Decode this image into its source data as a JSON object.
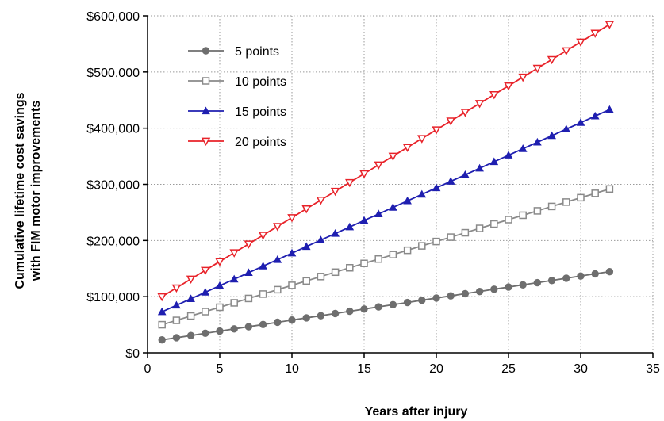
{
  "chart_data": {
    "type": "line",
    "xlabel": "Years after injury",
    "ylabel_lines": [
      "Cumulative lifetime cost savings",
      "with FIM motor improvements"
    ],
    "xlim": [
      0,
      35
    ],
    "ylim": [
      0,
      600000
    ],
    "xticks": [
      0,
      5,
      10,
      15,
      20,
      25,
      30,
      35
    ],
    "xtick_labels": [
      "0",
      "5",
      "10",
      "15",
      "20",
      "25",
      "30",
      "35"
    ],
    "yticks": [
      0,
      100000,
      200000,
      300000,
      400000,
      500000,
      600000
    ],
    "ytick_labels": [
      "$0",
      "$100,000",
      "$200,000",
      "$300,000",
      "$400,000",
      "$500,000",
      "$600,000"
    ],
    "grid": "dotted",
    "legend_position": "top-left",
    "x": [
      1,
      2,
      3,
      4,
      5,
      6,
      7,
      8,
      9,
      10,
      11,
      12,
      13,
      14,
      15,
      16,
      17,
      18,
      19,
      20,
      21,
      22,
      23,
      24,
      25,
      26,
      27,
      28,
      29,
      30,
      31,
      32
    ],
    "series": [
      {
        "name": "5 points",
        "color": "#6e6e6e",
        "marker": "filled-circle",
        "values": [
          23000,
          26900,
          30800,
          34800,
          38700,
          42600,
          46500,
          50400,
          54400,
          58300,
          62200,
          66100,
          70000,
          74000,
          77900,
          81800,
          85700,
          89600,
          93600,
          97500,
          101400,
          105300,
          109200,
          113200,
          117100,
          121000,
          124900,
          128800,
          132800,
          136700,
          140600,
          144500
        ]
      },
      {
        "name": "10 points",
        "color": "#8a8a8a",
        "marker": "open-square",
        "values": [
          50000,
          57800,
          65600,
          73400,
          81200,
          89000,
          96800,
          104600,
          112400,
          120200,
          128000,
          135800,
          143600,
          151400,
          159200,
          167000,
          174800,
          182600,
          190400,
          198200,
          206000,
          213800,
          221600,
          229400,
          237200,
          245000,
          252800,
          260600,
          268400,
          276200,
          284000,
          291800
        ]
      },
      {
        "name": "15 points",
        "color": "#1f1fb0",
        "marker": "filled-triangle-up",
        "values": [
          73000,
          84600,
          96200,
          107800,
          119500,
          131100,
          142700,
          154300,
          165900,
          177500,
          189200,
          200800,
          212400,
          224000,
          235600,
          247200,
          258900,
          270500,
          282100,
          293700,
          305300,
          316900,
          328600,
          340200,
          351800,
          363400,
          375000,
          386600,
          398300,
          409900,
          421500,
          433100
        ]
      },
      {
        "name": "20 points",
        "color": "#e8232a",
        "marker": "open-triangle-down",
        "values": [
          100000,
          115600,
          131300,
          146900,
          162600,
          178200,
          193800,
          209500,
          225100,
          240700,
          256400,
          272000,
          287700,
          303300,
          318900,
          334600,
          350200,
          365800,
          381500,
          397100,
          412800,
          428400,
          444000,
          459700,
          475300,
          490900,
          506600,
          522200,
          537900,
          553500,
          569100,
          584800
        ]
      }
    ]
  }
}
